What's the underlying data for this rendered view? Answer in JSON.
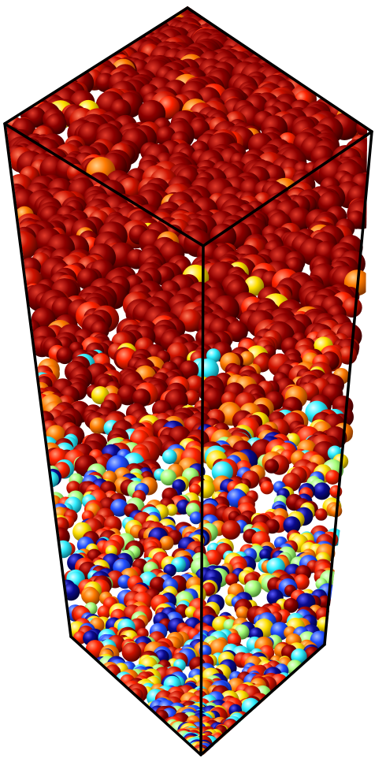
{
  "scene": {
    "description_kind": "3D render of a packed bed of spheres inside a rectangular box wireframe",
    "background_color": "#ffffff",
    "frame_color": "#000000",
    "palette": {
      "dark_red": "#8b0000",
      "red": "#cc1100",
      "bright_red": "#ff2200",
      "orange": "#ff7a00",
      "yellow": "#ffe000",
      "light_green": "#a8ff7a",
      "cyan": "#33f0ff",
      "blue": "#1f4dff",
      "navy": "#0a0a8c"
    }
  }
}
